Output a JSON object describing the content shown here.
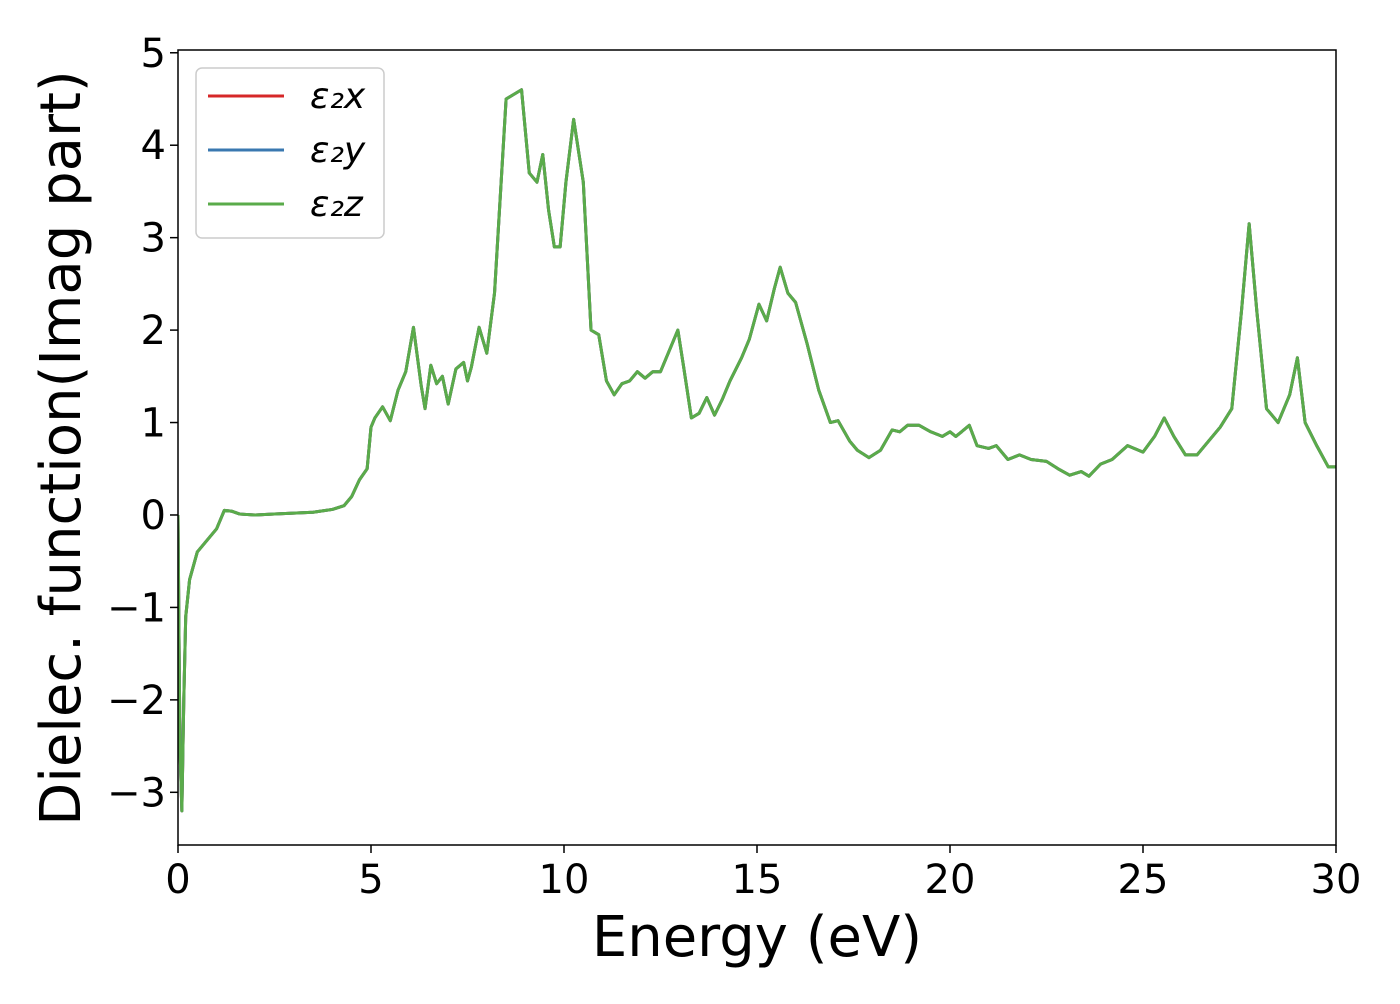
{
  "chart_data": {
    "type": "line",
    "xlabel": "Energy (eV)",
    "ylabel": "Dielec. function(Imag part)",
    "xlim": [
      0,
      30
    ],
    "ylim": [
      -3.57,
      5.03
    ],
    "xticks": [
      0,
      5,
      10,
      15,
      20,
      25,
      30
    ],
    "yticks": [
      {
        "value": -3,
        "label": "−3"
      },
      {
        "value": -2,
        "label": "−2"
      },
      {
        "value": -1,
        "label": "−1"
      },
      0,
      1,
      2,
      3,
      4,
      5
    ],
    "legend": "upper left",
    "x": [
      0,
      0.05,
      0.1,
      0.15,
      0.2,
      0.3,
      0.5,
      0.7,
      0.9,
      1.0,
      1.2,
      1.4,
      1.6,
      2,
      2.5,
      3,
      3.5,
      4,
      4.3,
      4.5,
      4.7,
      4.9,
      5.0,
      5.1,
      5.3,
      5.5,
      5.7,
      5.9,
      6.1,
      6.3,
      6.4,
      6.55,
      6.7,
      6.85,
      7.0,
      7.2,
      7.4,
      7.5,
      7.6,
      7.8,
      8.0,
      8.2,
      8.5,
      8.7,
      8.9,
      9.1,
      9.3,
      9.45,
      9.6,
      9.75,
      9.9,
      10.05,
      10.25,
      10.5,
      10.7,
      10.9,
      11.1,
      11.3,
      11.5,
      11.7,
      11.9,
      12.1,
      12.3,
      12.5,
      12.7,
      12.95,
      13.1,
      13.3,
      13.5,
      13.7,
      13.9,
      14.1,
      14.3,
      14.6,
      14.8,
      15.05,
      15.25,
      15.45,
      15.6,
      15.8,
      16.0,
      16.3,
      16.6,
      16.9,
      17.1,
      17.4,
      17.6,
      17.9,
      18.2,
      18.5,
      18.7,
      18.9,
      19.2,
      19.5,
      19.8,
      20.0,
      20.15,
      20.3,
      20.5,
      20.7,
      21,
      21.2,
      21.5,
      21.8,
      22.1,
      22.5,
      22.8,
      23.1,
      23.4,
      23.6,
      23.9,
      24.2,
      24.6,
      25,
      25.3,
      25.55,
      25.8,
      26.1,
      26.4,
      26.7,
      27,
      27.3,
      27.55,
      27.75,
      27.95,
      28.2,
      28.5,
      28.8,
      29.0,
      29.2,
      29.5,
      29.8,
      30
    ],
    "series": [
      {
        "name": "ε₂x",
        "color": "#d62728",
        "values": [
          0,
          -2.5,
          -3.2,
          -2.0,
          -1.1,
          -0.7,
          -0.4,
          -0.3,
          -0.2,
          -0.15,
          0.05,
          0.04,
          0.01,
          0.0,
          0.01,
          0.02,
          0.03,
          0.06,
          0.1,
          0.2,
          0.38,
          0.5,
          0.95,
          1.05,
          1.17,
          1.02,
          1.35,
          1.55,
          2.03,
          1.4,
          1.15,
          1.62,
          1.42,
          1.5,
          1.2,
          1.58,
          1.65,
          1.45,
          1.6,
          2.03,
          1.75,
          2.4,
          4.5,
          4.55,
          4.6,
          3.7,
          3.6,
          3.9,
          3.3,
          2.9,
          2.9,
          3.6,
          4.28,
          3.6,
          2.0,
          1.95,
          1.45,
          1.3,
          1.42,
          1.45,
          1.55,
          1.48,
          1.55,
          1.55,
          1.75,
          2.0,
          1.6,
          1.05,
          1.1,
          1.27,
          1.08,
          1.25,
          1.45,
          1.7,
          1.9,
          2.28,
          2.1,
          2.45,
          2.68,
          2.4,
          2.3,
          1.85,
          1.35,
          1.0,
          1.02,
          0.8,
          0.7,
          0.62,
          0.7,
          0.92,
          0.9,
          0.97,
          0.97,
          0.9,
          0.85,
          0.9,
          0.85,
          0.9,
          0.97,
          0.75,
          0.72,
          0.75,
          0.6,
          0.65,
          0.6,
          0.58,
          0.5,
          0.43,
          0.47,
          0.42,
          0.55,
          0.6,
          0.75,
          0.68,
          0.85,
          1.05,
          0.85,
          0.65,
          0.65,
          0.8,
          0.95,
          1.15,
          2.2,
          3.15,
          2.2,
          1.15,
          1.0,
          1.3,
          1.7,
          1.0,
          0.75,
          0.52,
          0.52
        ]
      },
      {
        "name": "ε₂y",
        "color": "#3a78b0",
        "values": [
          0,
          -2.5,
          -3.2,
          -2.0,
          -1.1,
          -0.7,
          -0.4,
          -0.3,
          -0.2,
          -0.15,
          0.05,
          0.04,
          0.01,
          0.0,
          0.01,
          0.02,
          0.03,
          0.06,
          0.1,
          0.2,
          0.38,
          0.5,
          0.95,
          1.05,
          1.17,
          1.02,
          1.35,
          1.55,
          2.03,
          1.4,
          1.15,
          1.62,
          1.42,
          1.5,
          1.2,
          1.58,
          1.65,
          1.45,
          1.6,
          2.03,
          1.75,
          2.4,
          4.5,
          4.55,
          4.6,
          3.7,
          3.6,
          3.9,
          3.3,
          2.9,
          2.9,
          3.6,
          4.28,
          3.6,
          2.0,
          1.95,
          1.45,
          1.3,
          1.42,
          1.45,
          1.55,
          1.48,
          1.55,
          1.55,
          1.75,
          2.0,
          1.6,
          1.05,
          1.1,
          1.27,
          1.08,
          1.25,
          1.45,
          1.7,
          1.9,
          2.28,
          2.1,
          2.45,
          2.68,
          2.4,
          2.3,
          1.85,
          1.35,
          1.0,
          1.02,
          0.8,
          0.7,
          0.62,
          0.7,
          0.92,
          0.9,
          0.97,
          0.97,
          0.9,
          0.85,
          0.9,
          0.85,
          0.9,
          0.97,
          0.75,
          0.72,
          0.75,
          0.6,
          0.65,
          0.6,
          0.58,
          0.5,
          0.43,
          0.47,
          0.42,
          0.55,
          0.6,
          0.75,
          0.68,
          0.85,
          1.05,
          0.85,
          0.65,
          0.65,
          0.8,
          0.95,
          1.15,
          2.2,
          3.15,
          2.2,
          1.15,
          1.0,
          1.3,
          1.7,
          1.0,
          0.75,
          0.52,
          0.52
        ]
      },
      {
        "name": "ε₂z",
        "color": "#5aab4a",
        "values": [
          0,
          -2.5,
          -3.2,
          -2.0,
          -1.1,
          -0.7,
          -0.4,
          -0.3,
          -0.2,
          -0.15,
          0.05,
          0.04,
          0.01,
          0.0,
          0.01,
          0.02,
          0.03,
          0.06,
          0.1,
          0.2,
          0.38,
          0.5,
          0.95,
          1.05,
          1.17,
          1.02,
          1.35,
          1.55,
          2.03,
          1.4,
          1.15,
          1.62,
          1.42,
          1.5,
          1.2,
          1.58,
          1.65,
          1.45,
          1.6,
          2.03,
          1.75,
          2.4,
          4.5,
          4.55,
          4.6,
          3.7,
          3.6,
          3.9,
          3.3,
          2.9,
          2.9,
          3.6,
          4.28,
          3.6,
          2.0,
          1.95,
          1.45,
          1.3,
          1.42,
          1.45,
          1.55,
          1.48,
          1.55,
          1.55,
          1.75,
          2.0,
          1.6,
          1.05,
          1.1,
          1.27,
          1.08,
          1.25,
          1.45,
          1.7,
          1.9,
          2.28,
          2.1,
          2.45,
          2.68,
          2.4,
          2.3,
          1.85,
          1.35,
          1.0,
          1.02,
          0.8,
          0.7,
          0.62,
          0.7,
          0.92,
          0.9,
          0.97,
          0.97,
          0.9,
          0.85,
          0.9,
          0.85,
          0.9,
          0.97,
          0.75,
          0.72,
          0.75,
          0.6,
          0.65,
          0.6,
          0.58,
          0.5,
          0.43,
          0.47,
          0.42,
          0.55,
          0.6,
          0.75,
          0.68,
          0.85,
          1.05,
          0.85,
          0.65,
          0.65,
          0.8,
          0.95,
          1.15,
          2.2,
          3.15,
          2.2,
          1.15,
          1.0,
          1.3,
          1.7,
          1.0,
          0.75,
          0.52,
          0.52
        ]
      }
    ]
  }
}
